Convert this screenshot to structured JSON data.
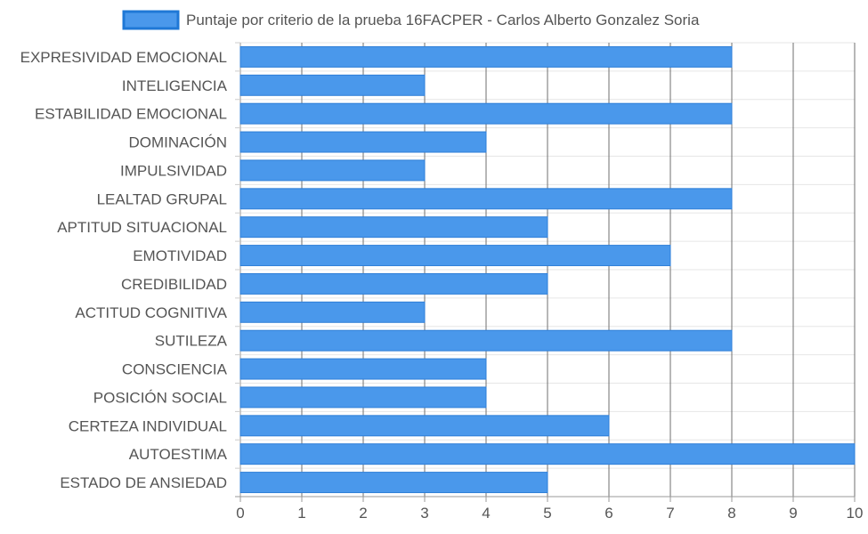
{
  "chart_data": {
    "type": "bar",
    "orientation": "horizontal",
    "title": "",
    "xlabel": "",
    "ylabel": "",
    "legend_position": "top",
    "grid": true,
    "xlim": [
      0,
      10
    ],
    "x_ticks": [
      "0",
      "1",
      "2",
      "3",
      "4",
      "5",
      "6",
      "7",
      "8",
      "9",
      "10"
    ],
    "categories": [
      "EXPRESIVIDAD EMOCIONAL",
      "INTELIGENCIA",
      "ESTABILIDAD EMOCIONAL",
      "DOMINACIÓN",
      "IMPULSIVIDAD",
      "LEALTAD GRUPAL",
      "APTITUD SITUACIONAL",
      "EMOTIVIDAD",
      "CREDIBILIDAD",
      "ACTITUD COGNITIVA",
      "SUTILEZA",
      "CONSCIENCIA",
      "POSICIÓN SOCIAL",
      "CERTEZA INDIVIDUAL",
      "AUTOESTIMA",
      "ESTADO DE ANSIEDAD"
    ],
    "series": [
      {
        "name": "Puntaje por criterio de la prueba 16FACPER - Carlos Alberto Gonzalez Soria",
        "color": "#4a98eb",
        "border_color": "#2f7fd8",
        "values": [
          8,
          3,
          8,
          4,
          3,
          8,
          5,
          7,
          5,
          3,
          8,
          4,
          4,
          6,
          10,
          5
        ]
      }
    ]
  }
}
